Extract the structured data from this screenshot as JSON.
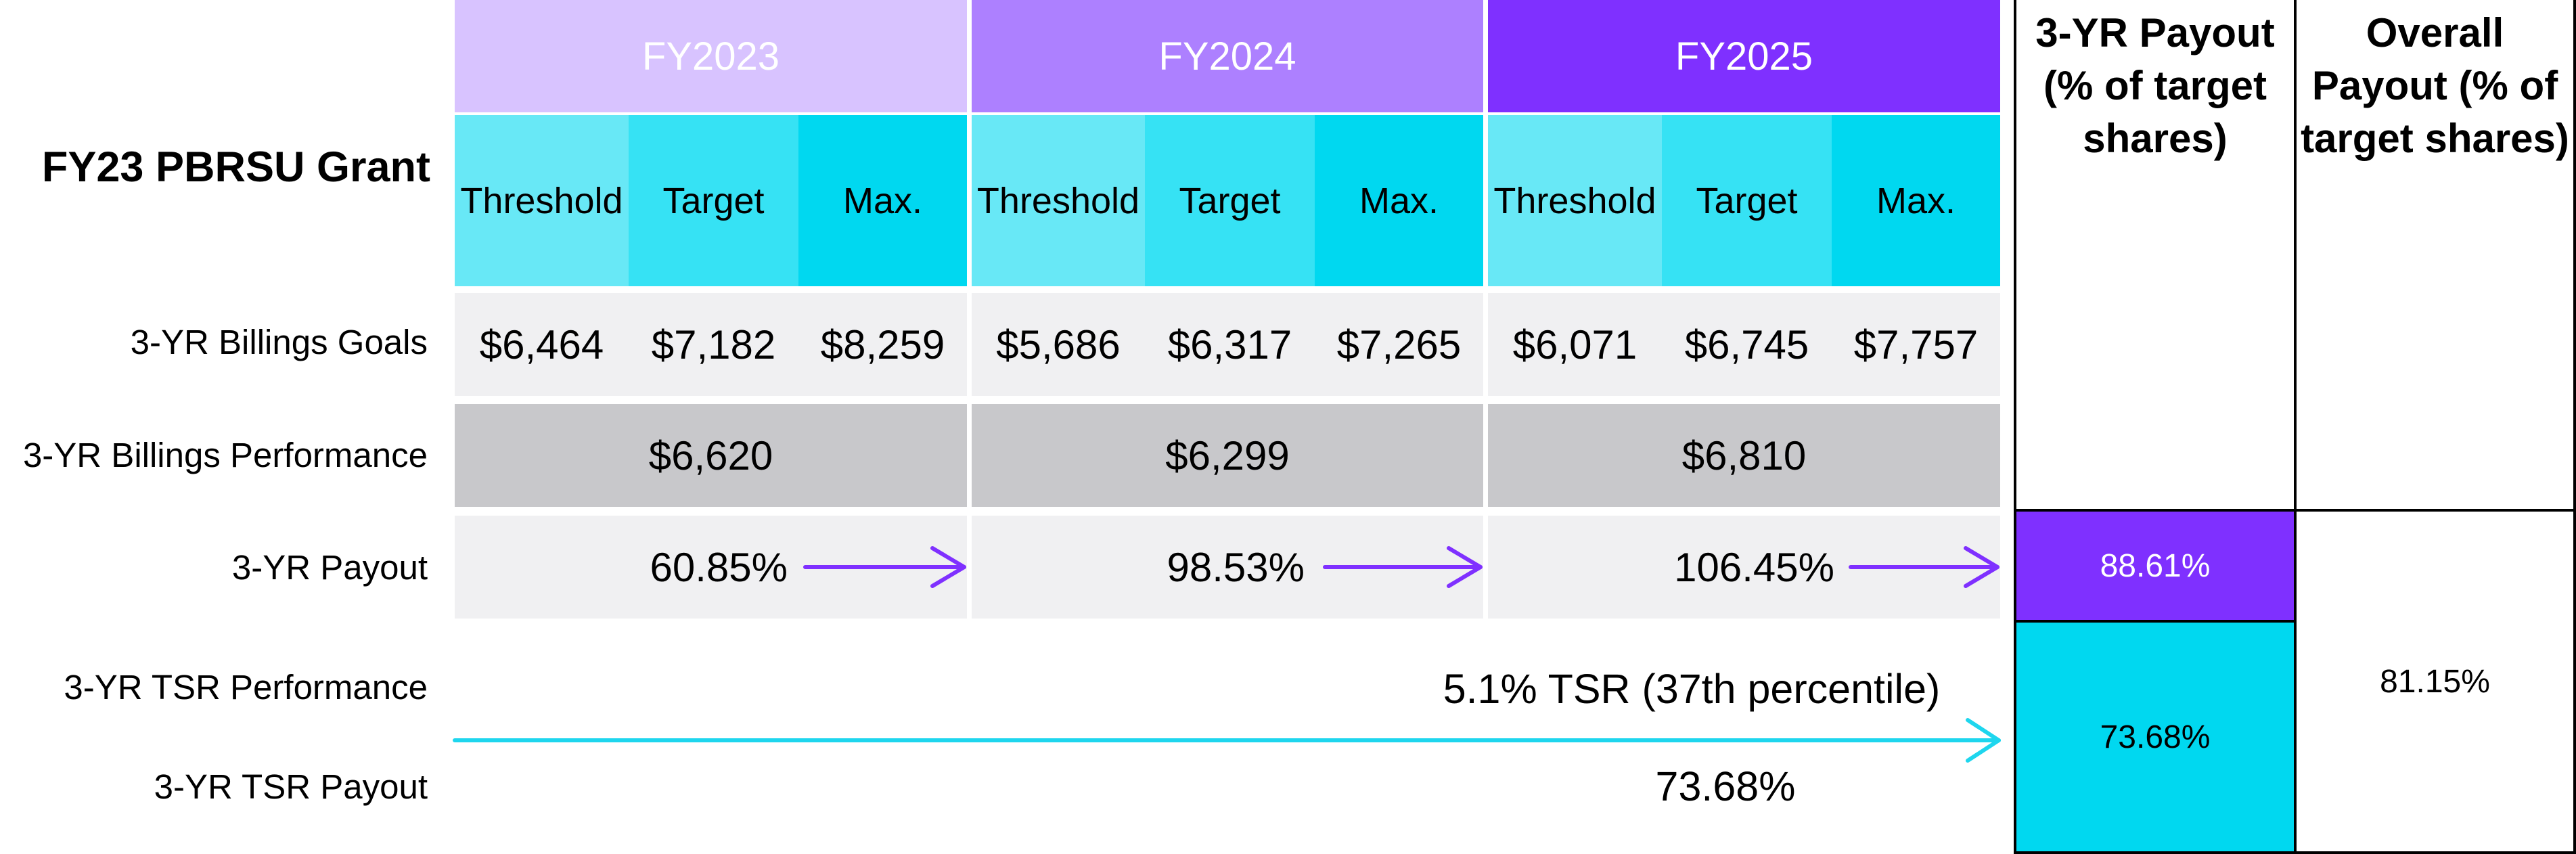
{
  "grant_title": "FY23 PBRSU Grant",
  "years": [
    "FY2023",
    "FY2024",
    "FY2025"
  ],
  "levels": [
    "Threshold",
    "Target",
    "Max."
  ],
  "row_labels": {
    "goals": "3-YR Billings Goals",
    "performance": "3-YR Billings Performance",
    "payout": "3-YR Payout",
    "tsr_performance": "3-YR TSR Performance",
    "tsr_payout": "3-YR TSR Payout"
  },
  "goals": [
    [
      "$6,464",
      "$7,182",
      "$8,259"
    ],
    [
      "$5,686",
      "$6,317",
      "$7,265"
    ],
    [
      "$6,071",
      "$6,745",
      "$7,757"
    ]
  ],
  "performance": [
    "$6,620",
    "$6,299",
    "$6,810"
  ],
  "payouts": [
    "60.85%",
    "98.53%",
    "106.45%"
  ],
  "tsr_performance_text": "5.1% TSR (37th percentile)",
  "tsr_payout_text": "73.68%",
  "three_yr_payout_header": "3-YR Payout (% of target shares)",
  "overall_payout_header": "Overall Payout (% of target shares)",
  "three_yr_payout_value": "88.61%",
  "tsr_payout_value": "73.68%",
  "overall_payout_value": "81.15%",
  "colors": {
    "fy2023": "#d8c3ff",
    "fy2024": "#ad80ff",
    "fy2025": "#7f30ff",
    "threshold": "#68e8f6",
    "target": "#36e2f4",
    "max": "#00d8f0",
    "goals_row": "#f0f0f2",
    "performance_row": "#c8c8cb",
    "purple_arrow": "#7f30ff",
    "cyan_arrow": "#1ed6ee"
  }
}
